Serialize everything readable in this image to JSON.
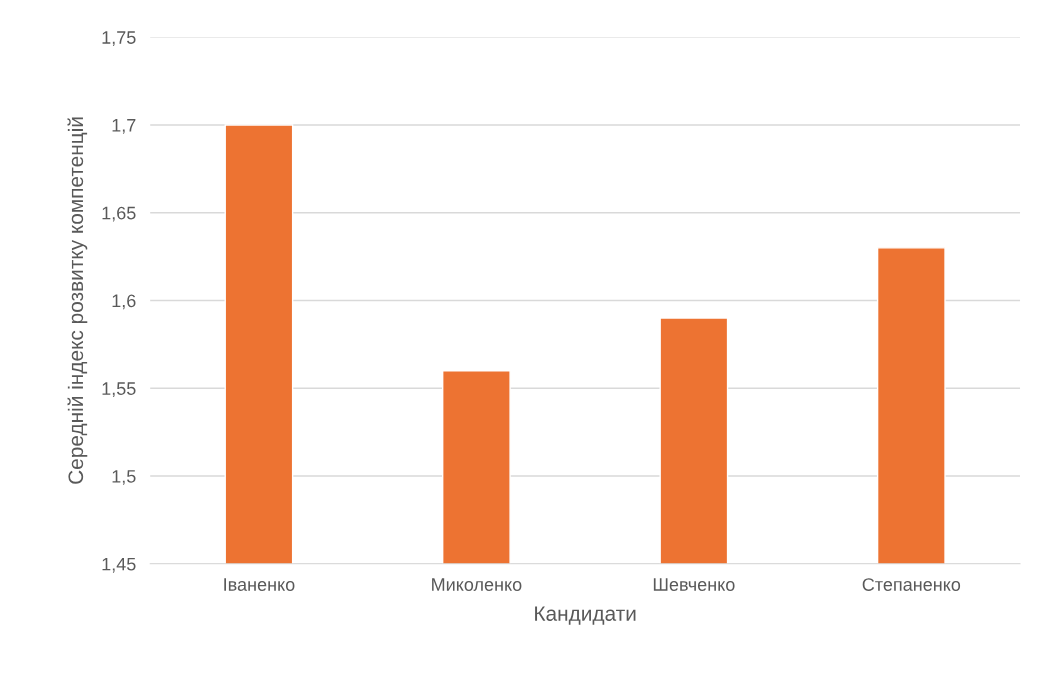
{
  "chart_data": {
    "type": "bar",
    "xlabel": "Кандидати",
    "ylabel": "Середній індекс розвитку компетенцій",
    "categories": [
      "Іваненко",
      "Миколенко",
      "Шевченко",
      "Степаненко"
    ],
    "values": [
      1.7,
      1.56,
      1.59,
      1.63
    ],
    "color": "#ed7332",
    "ylim": [
      1.45,
      1.75
    ],
    "yticks": [
      {
        "value": 1.45,
        "label": "1,45"
      },
      {
        "value": 1.5,
        "label": "1,5"
      },
      {
        "value": 1.55,
        "label": "1,55"
      },
      {
        "value": 1.6,
        "label": "1,6"
      },
      {
        "value": 1.65,
        "label": "1,65"
      },
      {
        "value": 1.7,
        "label": "1,7"
      },
      {
        "value": 1.75,
        "label": "1,75"
      }
    ],
    "grid": "y",
    "legend": false
  }
}
